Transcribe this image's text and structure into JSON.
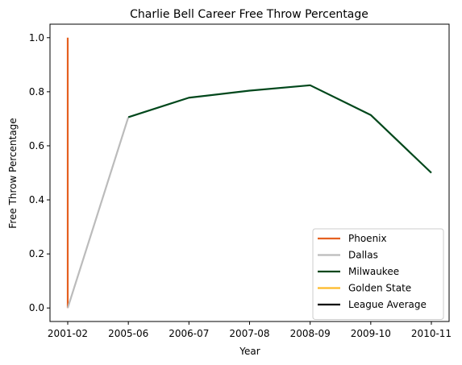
{
  "chart_data": {
    "type": "line",
    "title": "Charlie Bell  Career Free Throw Percentage",
    "xlabel": "Year",
    "ylabel": "Free Throw Percentage",
    "categories": [
      "2001-02",
      "2005-06",
      "2006-07",
      "2007-08",
      "2008-09",
      "2009-10",
      "2010-11"
    ],
    "ylim": [
      -0.05,
      1.05
    ],
    "yticks": [
      "0.0",
      "0.2",
      "0.4",
      "0.6",
      "0.8",
      "1.0"
    ],
    "grid": false,
    "legend_position": "lower-right",
    "series": [
      {
        "name": "Phoenix",
        "color": "#E56020",
        "points": [
          {
            "x": "2001-02",
            "y": 1.0
          },
          {
            "x": "2001-02",
            "y": 0.0
          }
        ]
      },
      {
        "name": "Dallas",
        "color": "#BBBBBB",
        "points": [
          {
            "x": "2001-02",
            "y": 0.0
          },
          {
            "x": "2005-06",
            "y": 0.706
          }
        ]
      },
      {
        "name": "Milwaukee",
        "color": "#00471B",
        "points": [
          {
            "x": "2005-06",
            "y": 0.706
          },
          {
            "x": "2006-07",
            "y": 0.778
          },
          {
            "x": "2007-08",
            "y": 0.804
          },
          {
            "x": "2008-09",
            "y": 0.824
          },
          {
            "x": "2009-10",
            "y": 0.714
          },
          {
            "x": "2010-11",
            "y": 0.5
          }
        ]
      },
      {
        "name": "Golden State",
        "color": "#FDB927",
        "points": []
      },
      {
        "name": "League Average",
        "color": "#000000",
        "points": []
      }
    ]
  }
}
